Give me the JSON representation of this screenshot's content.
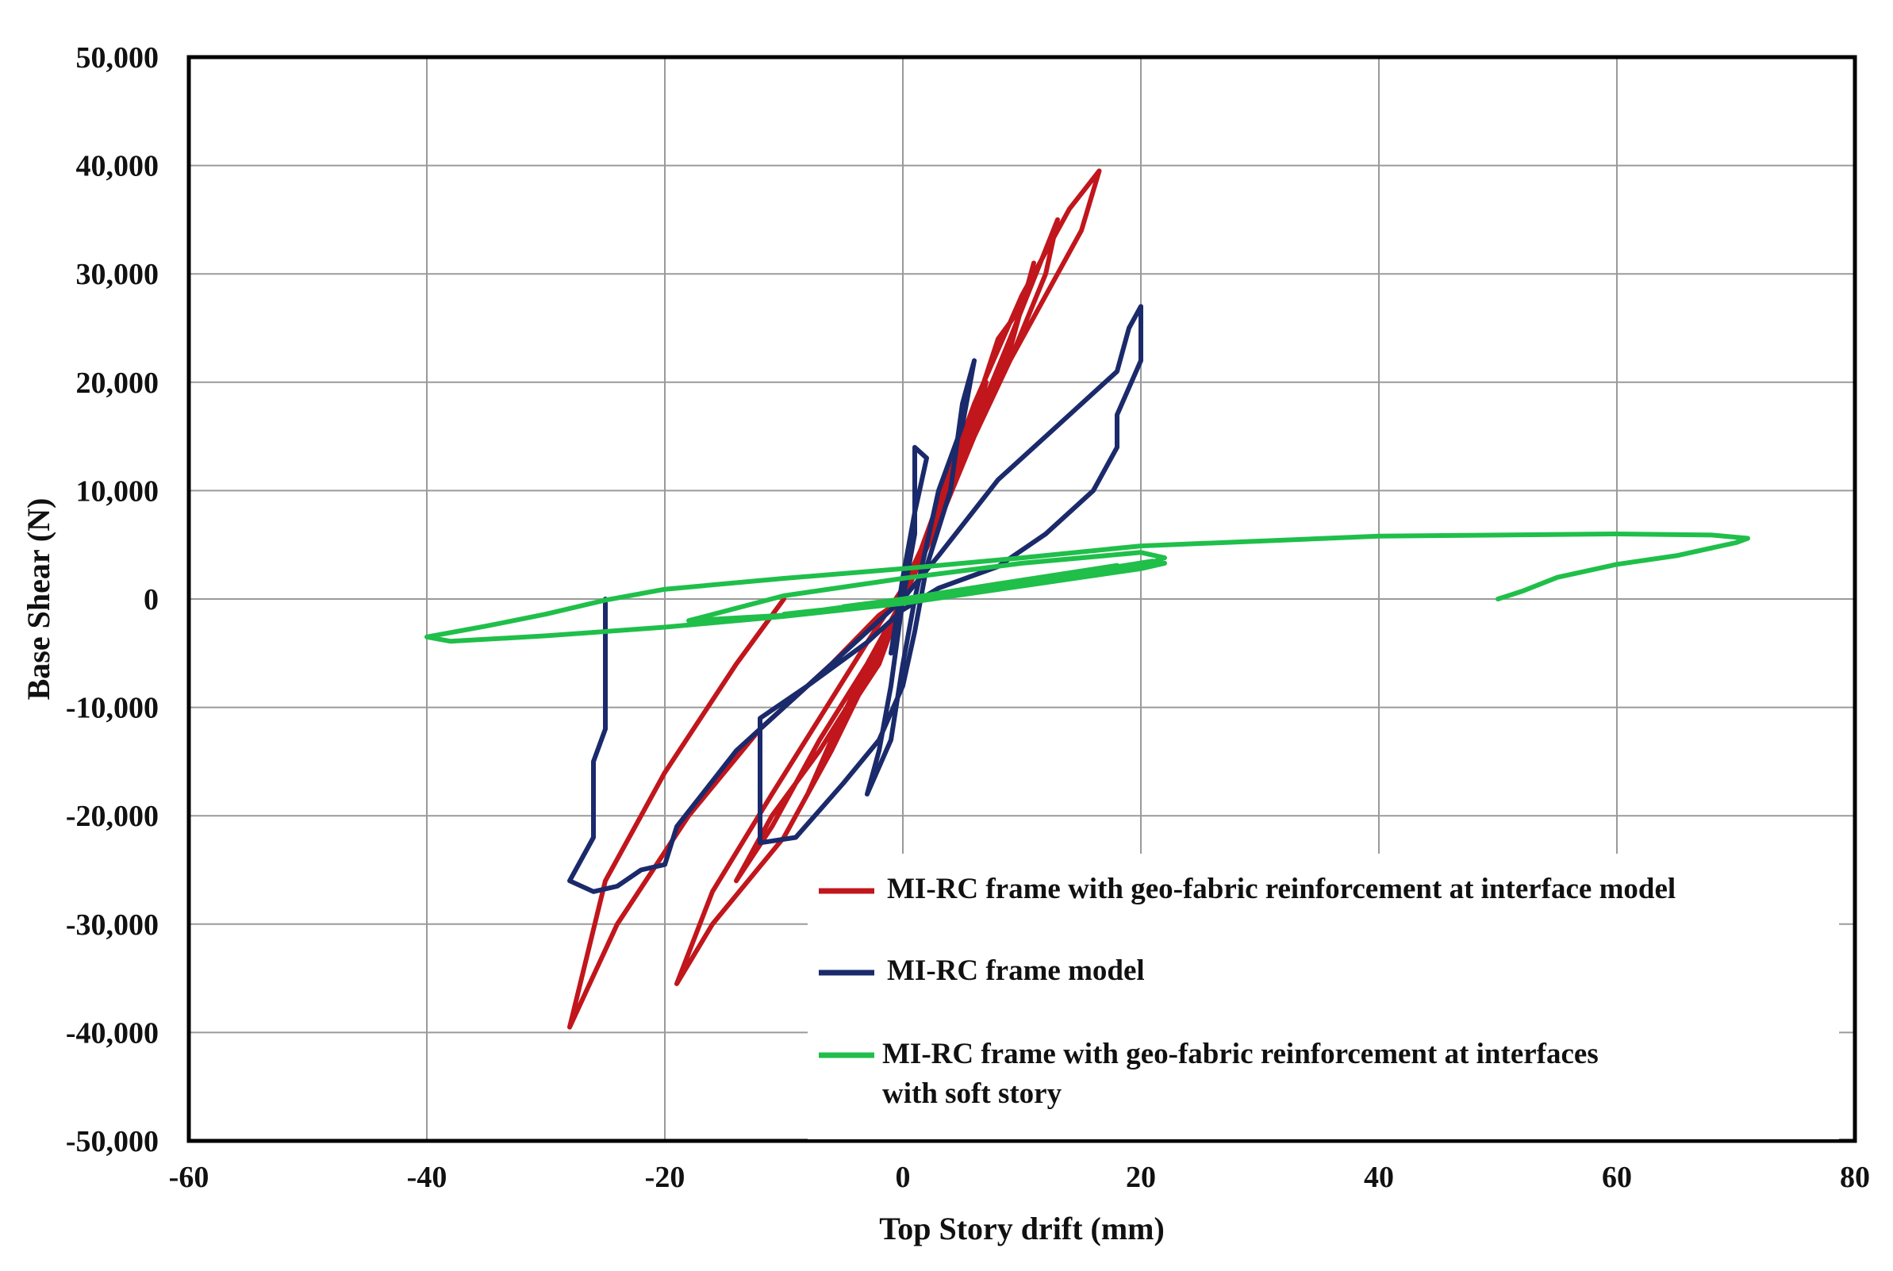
{
  "chart_data": {
    "type": "line",
    "xlabel": "Top Story drift (mm)",
    "ylabel": "Base Shear (N)",
    "xlim": [
      -60,
      80
    ],
    "ylim": [
      -50000,
      50000
    ],
    "x_ticks": [
      -60,
      -40,
      -20,
      0,
      20,
      40,
      60,
      80
    ],
    "y_ticks": [
      50000,
      40000,
      30000,
      20000,
      10000,
      0,
      -10000,
      -20000,
      -30000,
      -40000,
      -50000
    ],
    "x_tick_labels": [
      "-60",
      "-40",
      "-20",
      "0",
      "20",
      "40",
      "60",
      "80"
    ],
    "y_tick_labels": [
      "50,000",
      "40,000",
      "30,000",
      "20,000",
      "10,000",
      "0",
      "-10,000",
      "-20,000",
      "-30,000",
      "-40,000",
      "-50,000"
    ],
    "grid": true,
    "legend_position": "bottom-right",
    "series": [
      {
        "name": "MI-RC frame with geo-fabric reinforcement at interface model",
        "color": "#c0161c",
        "points": [
          [
            -10,
            0
          ],
          [
            -14,
            -6000
          ],
          [
            -20,
            -16000
          ],
          [
            -25,
            -26000
          ],
          [
            -28,
            -39500
          ],
          [
            -24,
            -30000
          ],
          [
            -18,
            -20000
          ],
          [
            -12,
            -12000
          ],
          [
            -6,
            -6000
          ],
          [
            -2,
            -1500
          ],
          [
            0,
            0
          ],
          [
            3,
            9000
          ],
          [
            6,
            18000
          ],
          [
            10,
            28000
          ],
          [
            14,
            36000
          ],
          [
            16.5,
            39500
          ],
          [
            15,
            34000
          ],
          [
            11,
            26000
          ],
          [
            7,
            18000
          ],
          [
            4,
            10000
          ],
          [
            1,
            3000
          ],
          [
            -2,
            -5000
          ],
          [
            -6,
            -14000
          ],
          [
            -10,
            -22000
          ],
          [
            -16,
            -30000
          ],
          [
            -19,
            -35500
          ],
          [
            -16,
            -27000
          ],
          [
            -11,
            -18000
          ],
          [
            -7,
            -11000
          ],
          [
            -3,
            -4000
          ],
          [
            0,
            1000
          ],
          [
            3,
            8000
          ],
          [
            6,
            16000
          ],
          [
            9,
            24000
          ],
          [
            13,
            35000
          ],
          [
            12,
            30000
          ],
          [
            9,
            22000
          ],
          [
            6,
            15000
          ],
          [
            3,
            8000
          ],
          [
            0,
            0
          ],
          [
            -3,
            -7000
          ],
          [
            -7,
            -14000
          ],
          [
            -11,
            -20000
          ],
          [
            -14,
            -26000
          ],
          [
            -11,
            -21000
          ],
          [
            -7,
            -13000
          ],
          [
            -3,
            -6000
          ],
          [
            0,
            0
          ],
          [
            2,
            6000
          ],
          [
            5,
            14000
          ],
          [
            8,
            24000
          ],
          [
            10,
            27000
          ],
          [
            11,
            31000
          ],
          [
            9,
            23000
          ],
          [
            6,
            15000
          ],
          [
            3,
            7000
          ],
          [
            0,
            0
          ],
          [
            -2,
            -6000
          ],
          [
            -5,
            -11000
          ],
          [
            -8,
            -18000
          ],
          [
            -6,
            -13000
          ],
          [
            -3,
            -6000
          ],
          [
            0,
            0
          ],
          [
            3,
            8000
          ],
          [
            5,
            14000
          ],
          [
            7,
            20000
          ],
          [
            6,
            16000
          ],
          [
            3,
            9000
          ],
          [
            0,
            0
          ]
        ]
      },
      {
        "name": "MI-RC frame model",
        "color": "#1a2a6b",
        "points": [
          [
            -25,
            0
          ],
          [
            -25,
            -12000
          ],
          [
            -26,
            -15000
          ],
          [
            -26,
            -22000
          ],
          [
            -27,
            -24000
          ],
          [
            -28,
            -26000
          ],
          [
            -26,
            -27000
          ],
          [
            -24,
            -26500
          ],
          [
            -22,
            -25000
          ],
          [
            -20,
            -24500
          ],
          [
            -19,
            -21000
          ],
          [
            -14,
            -14000
          ],
          [
            -8,
            -8000
          ],
          [
            -3,
            -3000
          ],
          [
            0,
            0
          ],
          [
            3,
            4000
          ],
          [
            8,
            11000
          ],
          [
            14,
            17000
          ],
          [
            18,
            21000
          ],
          [
            19,
            25000
          ],
          [
            20,
            27000
          ],
          [
            20,
            22000
          ],
          [
            18,
            17000
          ],
          [
            18,
            14000
          ],
          [
            16,
            10000
          ],
          [
            12,
            6000
          ],
          [
            8,
            3000
          ],
          [
            3,
            1000
          ],
          [
            0,
            -1000
          ],
          [
            -3,
            -4000
          ],
          [
            -8,
            -8000
          ],
          [
            -12,
            -11000
          ],
          [
            -12,
            -22500
          ],
          [
            -9,
            -22000
          ],
          [
            -5,
            -17000
          ],
          [
            -2,
            -13000
          ],
          [
            0,
            -8000
          ],
          [
            1,
            -3000
          ],
          [
            2,
            3000
          ],
          [
            4,
            10000
          ],
          [
            5,
            18000
          ],
          [
            6,
            22000
          ],
          [
            5,
            16000
          ],
          [
            3,
            10000
          ],
          [
            2,
            5000
          ],
          [
            1,
            0
          ],
          [
            0,
            -6000
          ],
          [
            -1,
            -13000
          ],
          [
            -3,
            -18000
          ],
          [
            -2,
            -14000
          ],
          [
            -1,
            -8000
          ],
          [
            0,
            0
          ],
          [
            1,
            6000
          ],
          [
            1,
            14000
          ],
          [
            2,
            13000
          ],
          [
            1,
            8000
          ],
          [
            0,
            2000
          ],
          [
            -1,
            -5000
          ],
          [
            0,
            0
          ]
        ]
      },
      {
        "name": "MI-RC frame with geo-fabric reinforcement at interfaces\nwith soft story",
        "color": "#1fbf4a",
        "points": [
          [
            50,
            0
          ],
          [
            52,
            700
          ],
          [
            55,
            2000
          ],
          [
            60,
            3200
          ],
          [
            65,
            4000
          ],
          [
            70,
            5200
          ],
          [
            71,
            5600
          ],
          [
            68,
            5900
          ],
          [
            60,
            6000
          ],
          [
            40,
            5800
          ],
          [
            20,
            4900
          ],
          [
            10,
            3800
          ],
          [
            0,
            2800
          ],
          [
            -10,
            1900
          ],
          [
            -20,
            900
          ],
          [
            -25,
            -100
          ],
          [
            -30,
            -1400
          ],
          [
            -35,
            -2500
          ],
          [
            -40,
            -3500
          ],
          [
            -38,
            -3900
          ],
          [
            -30,
            -3400
          ],
          [
            -20,
            -2600
          ],
          [
            -10,
            -1600
          ],
          [
            0,
            -400
          ],
          [
            10,
            1200
          ],
          [
            20,
            3000
          ],
          [
            22,
            3800
          ],
          [
            20,
            4300
          ],
          [
            10,
            3300
          ],
          [
            0,
            1900
          ],
          [
            -10,
            300
          ],
          [
            -18,
            -2000
          ],
          [
            -10,
            -1500
          ],
          [
            0,
            0
          ],
          [
            10,
            1500
          ],
          [
            22,
            3300
          ],
          [
            20,
            2800
          ],
          [
            10,
            1200
          ],
          [
            0,
            -300
          ],
          [
            -10,
            -1400
          ],
          [
            0,
            -200
          ],
          [
            10,
            1600
          ],
          [
            21,
            3500
          ],
          [
            15,
            2300
          ],
          [
            5,
            600
          ],
          [
            -5,
            -700
          ],
          [
            0,
            0
          ],
          [
            8,
            1400
          ],
          [
            18,
            3100
          ],
          [
            12,
            1800
          ],
          [
            2,
            300
          ],
          [
            0,
            0
          ]
        ]
      }
    ]
  }
}
